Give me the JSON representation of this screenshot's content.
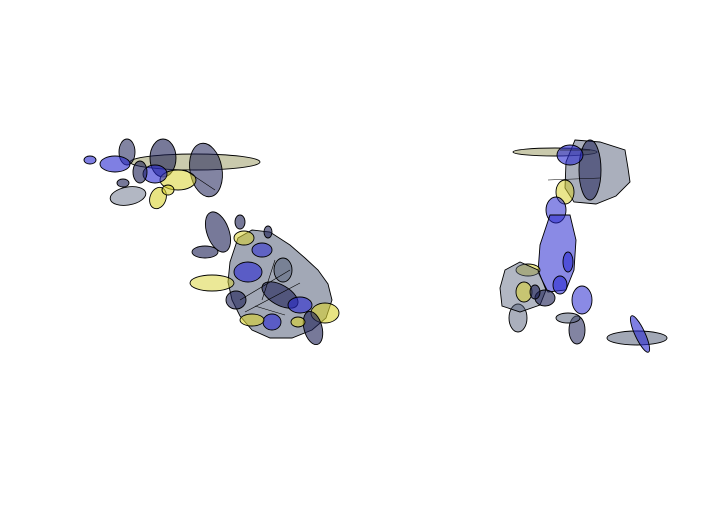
{
  "palette": {
    "background": "#ffffff",
    "blue": "#2a2ad0",
    "navy": "#1c1f55",
    "slate": "#55607a",
    "olive": "#8a8a4a",
    "yellow": "#d8d230",
    "stroke": "#000000"
  },
  "clusters": [
    {
      "id": "left-cluster",
      "description_fill_mix": [
        "navy",
        "blue",
        "yellow",
        "slate"
      ]
    },
    {
      "id": "center-cluster",
      "description_fill_mix": [
        "navy",
        "blue",
        "yellow",
        "slate"
      ]
    },
    {
      "id": "right-cluster",
      "description_fill_mix": [
        "navy",
        "blue",
        "yellow",
        "slate"
      ]
    }
  ]
}
